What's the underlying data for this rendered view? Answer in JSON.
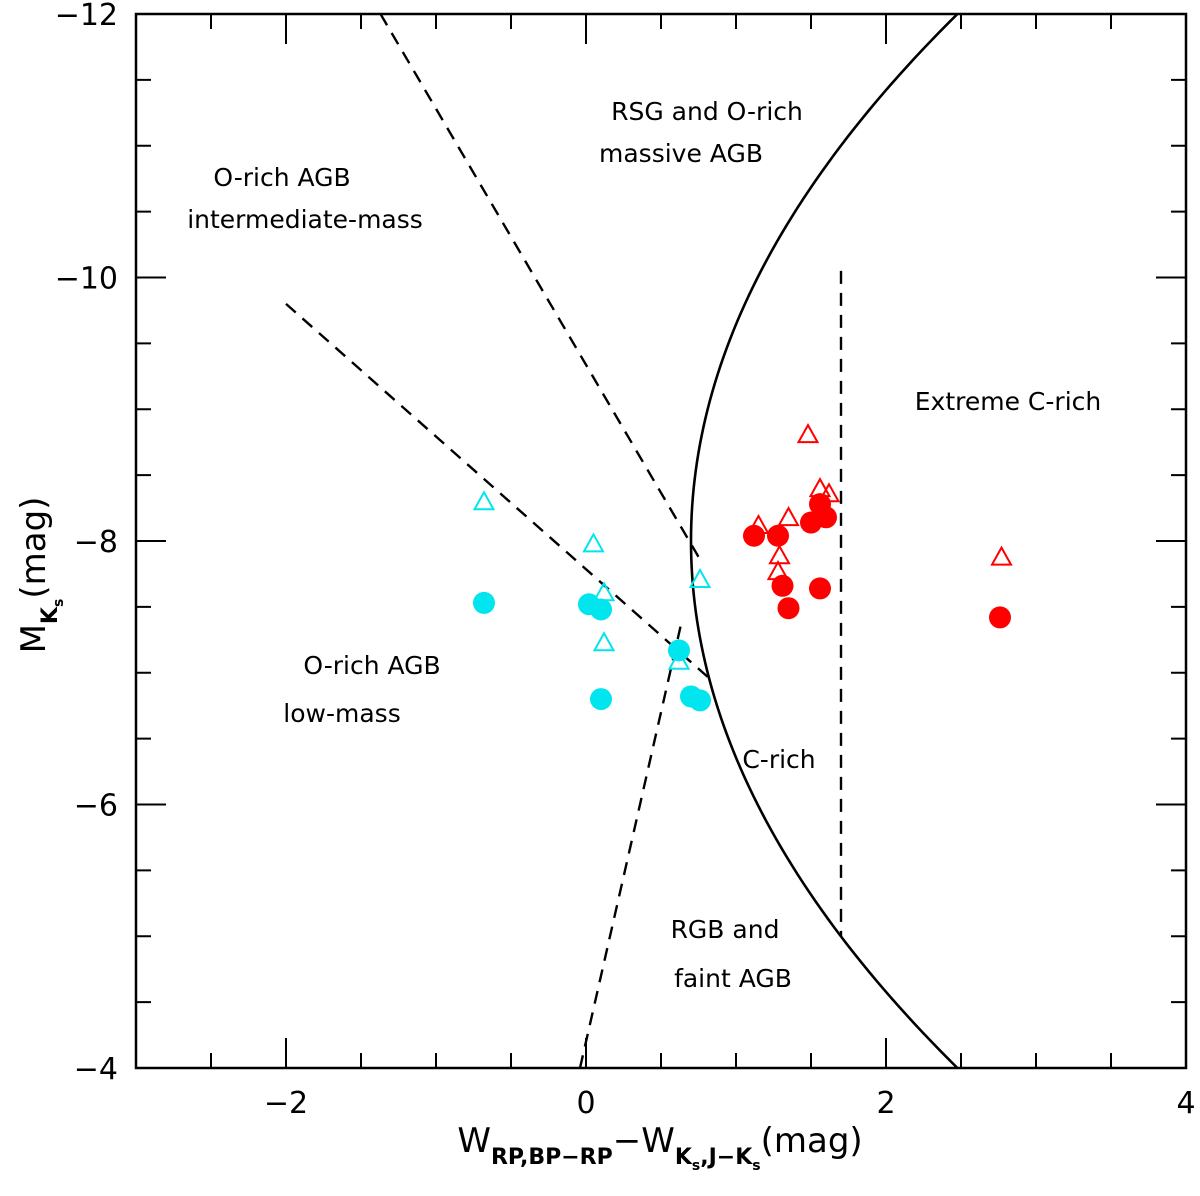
{
  "chart_data": {
    "type": "scatter",
    "title": "",
    "xlabel": {
      "main": "W",
      "sub1": "RP,BP−RP",
      "minus": "−W",
      "sub2a": "K",
      "sub2b": "s",
      "sub2c": ",J−K",
      "sub2d": "s",
      "unit": "(mag)"
    },
    "ylabel": {
      "main": "M",
      "sub": "K",
      "subsub": "s",
      "unit": "(mag)"
    },
    "xlim": [
      -3,
      4
    ],
    "ylim": [
      -4,
      -12
    ],
    "x_major_ticks": [
      -2,
      0,
      2,
      4
    ],
    "x_tick_labels": [
      "−2",
      "0",
      "2",
      "4"
    ],
    "y_major_ticks": [
      -4,
      -6,
      -8,
      -10,
      -12
    ],
    "y_tick_labels": [
      "−4",
      "−6",
      "−8",
      "−10",
      "−12"
    ],
    "colors": {
      "o_rich": "#00e5ee",
      "c_rich": "#ff0000",
      "lines": "#000000"
    },
    "series": [
      {
        "name": "O-rich filled",
        "marker": "circle-filled",
        "color": "#00e5ee",
        "points": [
          [
            -0.68,
            -7.53
          ],
          [
            0.02,
            -7.52
          ],
          [
            0.1,
            -7.48
          ],
          [
            0.62,
            -7.17
          ],
          [
            0.1,
            -6.8
          ],
          [
            0.7,
            -6.82
          ],
          [
            0.76,
            -6.79
          ]
        ]
      },
      {
        "name": "O-rich open",
        "marker": "triangle-open",
        "color": "#00e5ee",
        "points": [
          [
            -0.68,
            -8.29
          ],
          [
            0.05,
            -7.97
          ],
          [
            0.12,
            -7.6
          ],
          [
            0.12,
            -7.22
          ],
          [
            0.76,
            -7.7
          ],
          [
            0.62,
            -7.08
          ]
        ]
      },
      {
        "name": "C-rich filled",
        "marker": "circle-filled",
        "color": "#ff0000",
        "points": [
          [
            1.12,
            -8.04
          ],
          [
            1.28,
            -8.04
          ],
          [
            1.5,
            -8.14
          ],
          [
            1.6,
            -8.18
          ],
          [
            1.56,
            -8.28
          ],
          [
            1.31,
            -7.66
          ],
          [
            1.35,
            -7.49
          ],
          [
            1.56,
            -7.64
          ],
          [
            2.76,
            -7.42
          ]
        ]
      },
      {
        "name": "C-rich open",
        "marker": "triangle-open",
        "color": "#ff0000",
        "points": [
          [
            1.48,
            -8.8
          ],
          [
            1.56,
            -8.39
          ],
          [
            1.62,
            -8.35
          ],
          [
            1.35,
            -8.17
          ],
          [
            1.15,
            -8.11
          ],
          [
            1.29,
            -7.88
          ],
          [
            1.28,
            -7.76
          ],
          [
            2.77,
            -7.87
          ]
        ]
      }
    ],
    "boundaries": [
      {
        "name": "o-rich-intermediate-boundary",
        "style": "dashed",
        "points": [
          [
            -1.37,
            -12.0
          ],
          [
            0.75,
            -7.88
          ]
        ]
      },
      {
        "name": "o-rich-low-mass-boundary",
        "style": "dashed",
        "points": [
          [
            -2.0,
            -9.8
          ],
          [
            0.82,
            -6.96
          ]
        ]
      },
      {
        "name": "rgb-boundary",
        "style": "dashed",
        "points": [
          [
            -0.04,
            -4.0
          ],
          [
            0.63,
            -7.35
          ]
        ]
      },
      {
        "name": "extreme-c-rich-boundary",
        "style": "dashed",
        "points": [
          [
            1.7,
            -10.05
          ],
          [
            1.7,
            -5.0
          ]
        ]
      },
      {
        "name": "c-rich-curve",
        "style": "solid",
        "vertex": [
          0.7,
          -8.0
        ],
        "coef": 0.111,
        "y_range": [
          -4.0,
          -12.0
        ]
      }
    ],
    "annotations": [
      {
        "name": "rsg-label",
        "lines": [
          "RSG and O-rich",
          "massive AGB"
        ]
      },
      {
        "name": "o-rich-intermediate-label",
        "lines": [
          "O-rich AGB",
          "intermediate-mass"
        ]
      },
      {
        "name": "extreme-c-rich-label",
        "lines": [
          "Extreme C-rich"
        ]
      },
      {
        "name": "o-rich-low-mass-label",
        "lines": [
          "O-rich AGB",
          "low-mass"
        ]
      },
      {
        "name": "c-rich-label",
        "lines": [
          "C-rich"
        ]
      },
      {
        "name": "rgb-label",
        "lines": [
          "RGB and",
          "faint AGB"
        ]
      }
    ]
  }
}
